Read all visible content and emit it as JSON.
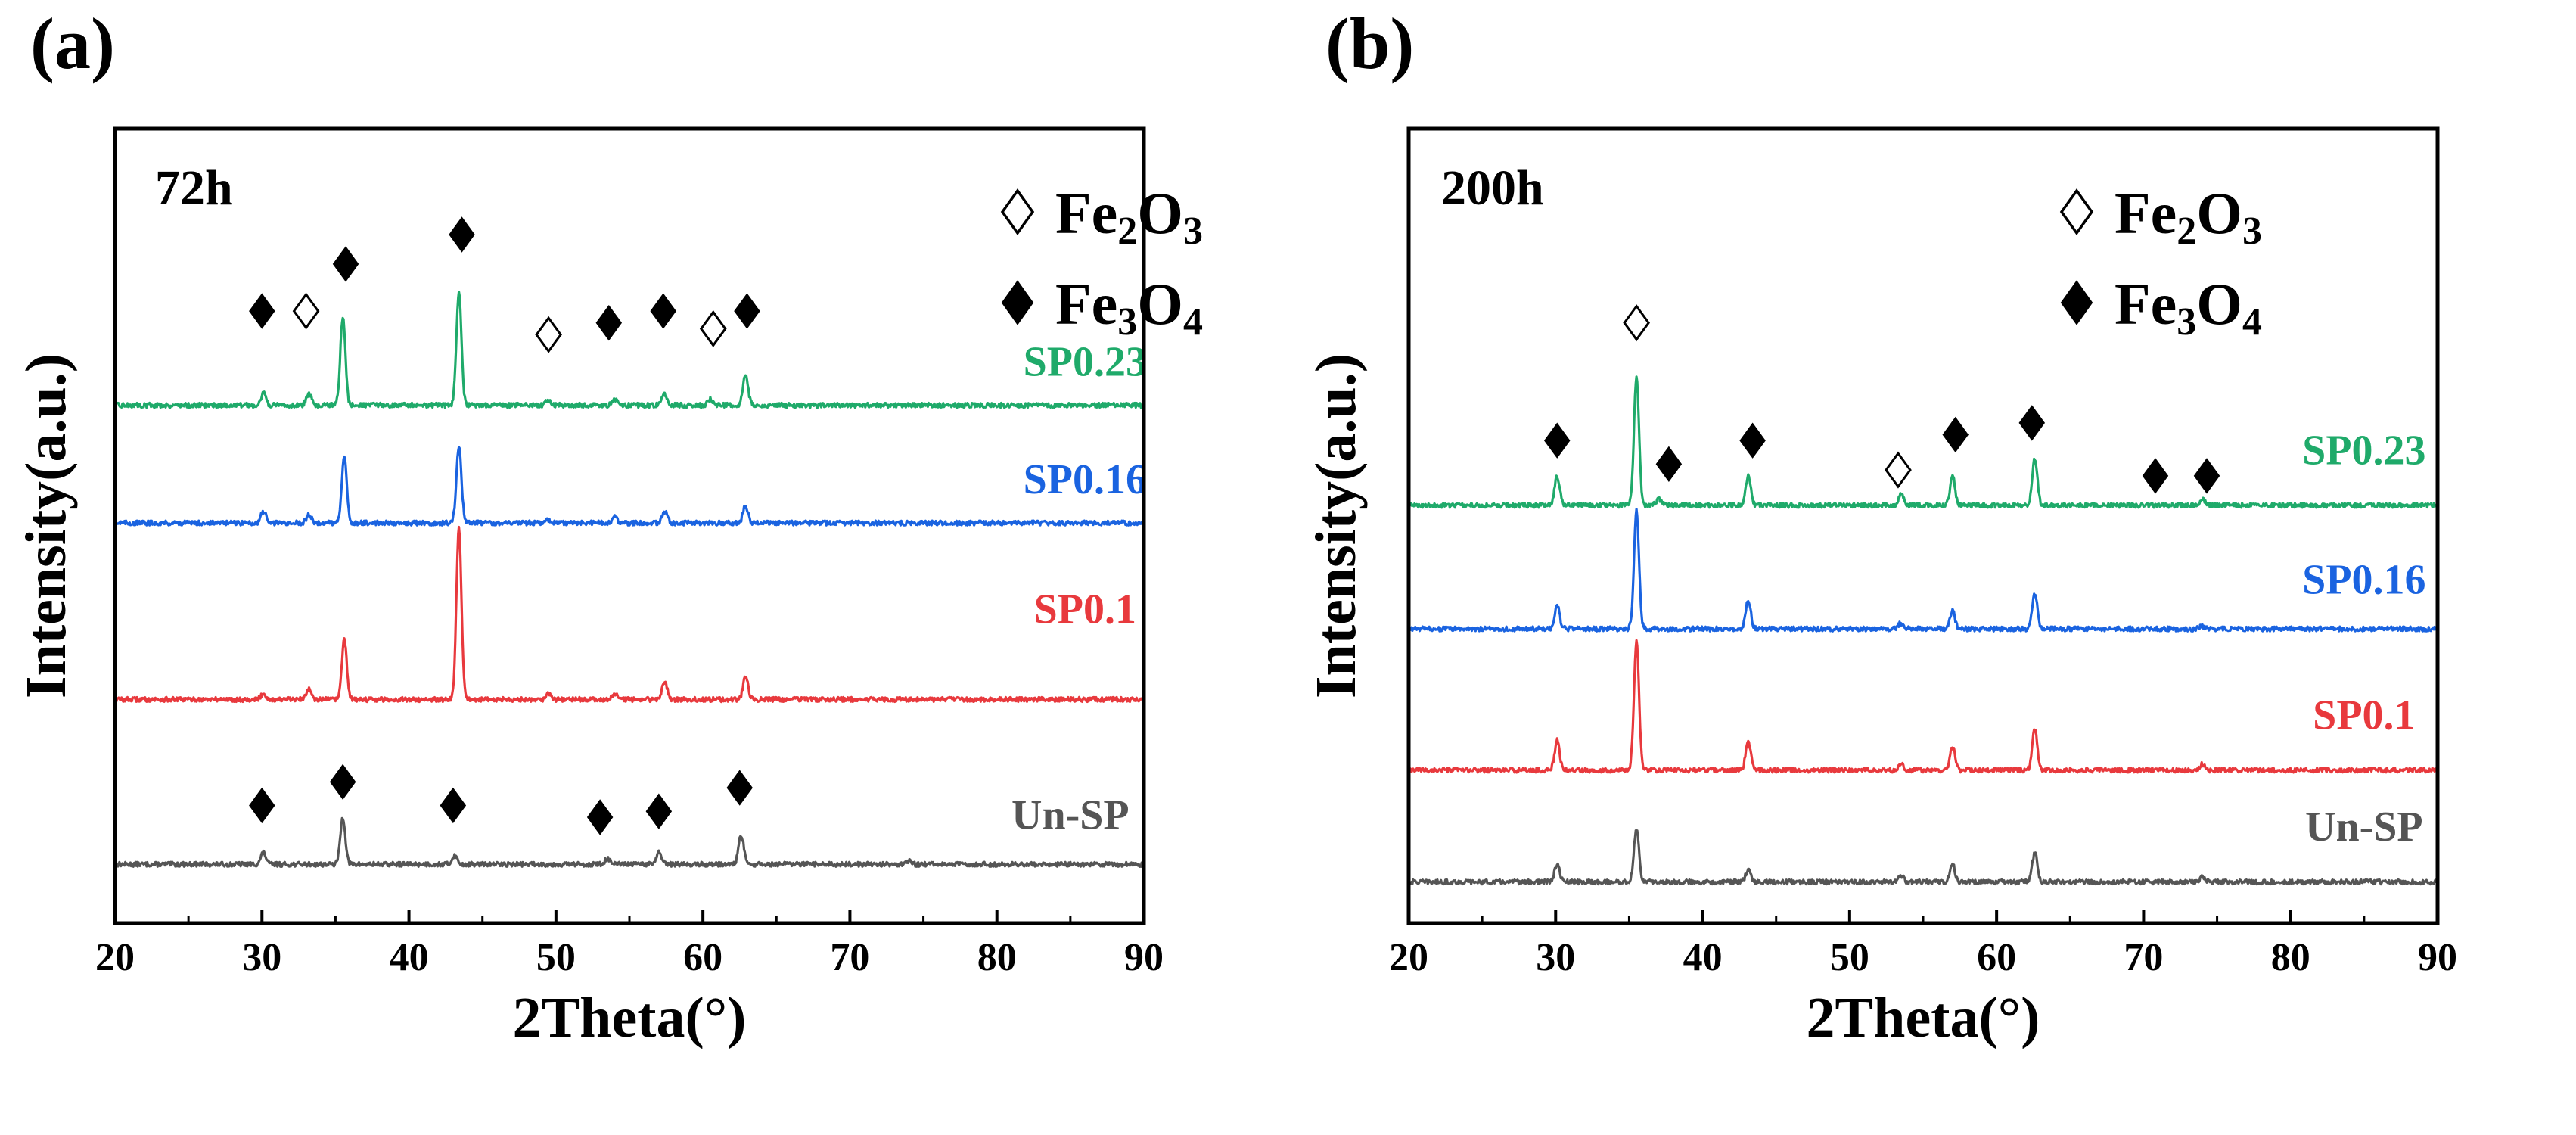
{
  "chart_data": [
    {
      "type": "line",
      "panel_label": "(a)",
      "time_label": "72h",
      "xlabel": "2Theta(°)",
      "ylabel": "Intensity(a.u.)",
      "xlim": [
        20,
        90
      ],
      "xticks": [
        20,
        30,
        40,
        50,
        60,
        70,
        80,
        90
      ],
      "yticks": [],
      "ylim": [
        0,
        1.35
      ],
      "legend": {
        "placement": "top-right",
        "entries": [
          {
            "marker": "open-diamond",
            "formula": [
              {
                "t": "Fe"
              },
              {
                "t": "2",
                "sub": true
              },
              {
                "t": "O"
              },
              {
                "t": "3",
                "sub": true
              }
            ]
          },
          {
            "marker": "filled-diamond",
            "formula": [
              {
                "t": "Fe"
              },
              {
                "t": "3",
                "sub": true
              },
              {
                "t": "O"
              },
              {
                "t": "4",
                "sub": true
              }
            ]
          }
        ]
      },
      "series": [
        {
          "name": "Un-SP",
          "color": "#555555",
          "offset": 0.1,
          "label_at": {
            "x": 85,
            "y": 0.16
          },
          "peaks": [
            [
              30.1,
              0.02
            ],
            [
              35.5,
              0.08
            ],
            [
              43.1,
              0.015
            ],
            [
              53.5,
              0.01
            ],
            [
              57.0,
              0.02
            ],
            [
              62.6,
              0.05
            ],
            [
              74.0,
              0.005
            ]
          ],
          "markers": [
            {
              "x": 30.0,
              "y": 0.2,
              "type": "filled"
            },
            {
              "x": 35.5,
              "y": 0.24,
              "type": "filled"
            },
            {
              "x": 43.0,
              "y": 0.2,
              "type": "filled"
            },
            {
              "x": 53.0,
              "y": 0.18,
              "type": "filled"
            },
            {
              "x": 57.0,
              "y": 0.19,
              "type": "filled"
            },
            {
              "x": 62.5,
              "y": 0.23,
              "type": "filled"
            }
          ]
        },
        {
          "name": "SP0.1",
          "color": "#e8393d",
          "offset": 0.38,
          "label_at": {
            "x": 86,
            "y": 0.51
          },
          "peaks": [
            [
              30.1,
              0.01
            ],
            [
              33.2,
              0.02
            ],
            [
              35.6,
              0.1
            ],
            [
              43.4,
              0.29
            ],
            [
              49.5,
              0.01
            ],
            [
              54.0,
              0.01
            ],
            [
              57.4,
              0.03
            ],
            [
              62.9,
              0.04
            ]
          ],
          "markers": []
        },
        {
          "name": "SP0.16",
          "color": "#1a63e0",
          "offset": 0.68,
          "label_at": {
            "x": 86,
            "y": 0.73
          },
          "peaks": [
            [
              30.1,
              0.02
            ],
            [
              33.2,
              0.015
            ],
            [
              35.6,
              0.11
            ],
            [
              43.4,
              0.13
            ],
            [
              49.5,
              0.005
            ],
            [
              54.0,
              0.01
            ],
            [
              57.4,
              0.02
            ],
            [
              62.9,
              0.03
            ]
          ],
          "markers": []
        },
        {
          "name": "SP0.23",
          "color": "#1faa6a",
          "offset": 0.88,
          "label_at": {
            "x": 86,
            "y": 0.93
          },
          "peaks": [
            [
              30.1,
              0.02
            ],
            [
              33.2,
              0.02
            ],
            [
              35.5,
              0.15
            ],
            [
              43.4,
              0.19
            ],
            [
              49.5,
              0.01
            ],
            [
              54.0,
              0.01
            ],
            [
              57.4,
              0.02
            ],
            [
              60.5,
              0.01
            ],
            [
              62.9,
              0.05
            ]
          ],
          "markers": [
            {
              "x": 30.0,
              "y": 1.04,
              "type": "filled"
            },
            {
              "x": 33.0,
              "y": 1.04,
              "type": "open"
            },
            {
              "x": 35.7,
              "y": 1.12,
              "type": "filled"
            },
            {
              "x": 43.6,
              "y": 1.17,
              "type": "filled"
            },
            {
              "x": 49.5,
              "y": 1.0,
              "type": "open"
            },
            {
              "x": 53.6,
              "y": 1.02,
              "type": "filled"
            },
            {
              "x": 57.3,
              "y": 1.04,
              "type": "filled"
            },
            {
              "x": 60.7,
              "y": 1.01,
              "type": "open"
            },
            {
              "x": 63.0,
              "y": 1.04,
              "type": "filled"
            }
          ]
        }
      ]
    },
    {
      "type": "line",
      "panel_label": "(b)",
      "time_label": "200h",
      "xlabel": "2Theta(°)",
      "ylabel": "Intensity(a.u.)",
      "xlim": [
        20,
        90
      ],
      "xticks": [
        20,
        30,
        40,
        50,
        60,
        70,
        80,
        90
      ],
      "yticks": [],
      "ylim": [
        0,
        1.35
      ],
      "legend": {
        "placement": "top-right",
        "entries": [
          {
            "marker": "open-diamond",
            "formula": [
              {
                "t": "Fe"
              },
              {
                "t": "2",
                "sub": true
              },
              {
                "t": "O"
              },
              {
                "t": "3",
                "sub": true
              }
            ]
          },
          {
            "marker": "filled-diamond",
            "formula": [
              {
                "t": "Fe"
              },
              {
                "t": "3",
                "sub": true
              },
              {
                "t": "O"
              },
              {
                "t": "4",
                "sub": true
              }
            ]
          }
        ]
      },
      "series": [
        {
          "name": "Un-SP",
          "color": "#555555",
          "offset": 0.07,
          "label_at": {
            "x": 85,
            "y": 0.14
          },
          "peaks": [
            [
              30.1,
              0.03
            ],
            [
              35.5,
              0.09
            ],
            [
              43.1,
              0.02
            ],
            [
              53.5,
              0.01
            ],
            [
              57.0,
              0.03
            ],
            [
              62.6,
              0.05
            ],
            [
              74.0,
              0.01
            ]
          ],
          "markers": []
        },
        {
          "name": "SP0.1",
          "color": "#e8393d",
          "offset": 0.26,
          "label_at": {
            "x": 85,
            "y": 0.33
          },
          "peaks": [
            [
              30.1,
              0.05
            ],
            [
              35.5,
              0.22
            ],
            [
              43.1,
              0.05
            ],
            [
              53.5,
              0.01
            ],
            [
              57.0,
              0.04
            ],
            [
              62.6,
              0.07
            ],
            [
              74.0,
              0.01
            ]
          ],
          "markers": []
        },
        {
          "name": "SP0.16",
          "color": "#1a63e0",
          "offset": 0.5,
          "label_at": {
            "x": 85,
            "y": 0.56
          },
          "peaks": [
            [
              30.1,
              0.04
            ],
            [
              35.5,
              0.2
            ],
            [
              43.1,
              0.05
            ],
            [
              53.5,
              0.01
            ],
            [
              57.0,
              0.03
            ],
            [
              62.6,
              0.06
            ],
            [
              74.0,
              0.005
            ]
          ],
          "markers": []
        },
        {
          "name": "SP0.23",
          "color": "#1faa6a",
          "offset": 0.71,
          "label_at": {
            "x": 85,
            "y": 0.78
          },
          "peaks": [
            [
              30.1,
              0.05
            ],
            [
              35.5,
              0.22
            ],
            [
              37.0,
              0.01
            ],
            [
              43.1,
              0.05
            ],
            [
              53.5,
              0.02
            ],
            [
              57.0,
              0.05
            ],
            [
              62.6,
              0.08
            ],
            [
              74.0,
              0.01
            ]
          ],
          "markers": [
            {
              "x": 30.1,
              "y": 0.82,
              "type": "filled"
            },
            {
              "x": 35.5,
              "y": 1.02,
              "type": "open"
            },
            {
              "x": 37.7,
              "y": 0.78,
              "type": "filled"
            },
            {
              "x": 43.4,
              "y": 0.82,
              "type": "filled"
            },
            {
              "x": 53.3,
              "y": 0.77,
              "type": "open"
            },
            {
              "x": 57.2,
              "y": 0.83,
              "type": "filled"
            },
            {
              "x": 62.4,
              "y": 0.85,
              "type": "filled"
            },
            {
              "x": 70.8,
              "y": 0.76,
              "type": "filled"
            },
            {
              "x": 74.3,
              "y": 0.76,
              "type": "filled"
            }
          ]
        }
      ]
    }
  ]
}
